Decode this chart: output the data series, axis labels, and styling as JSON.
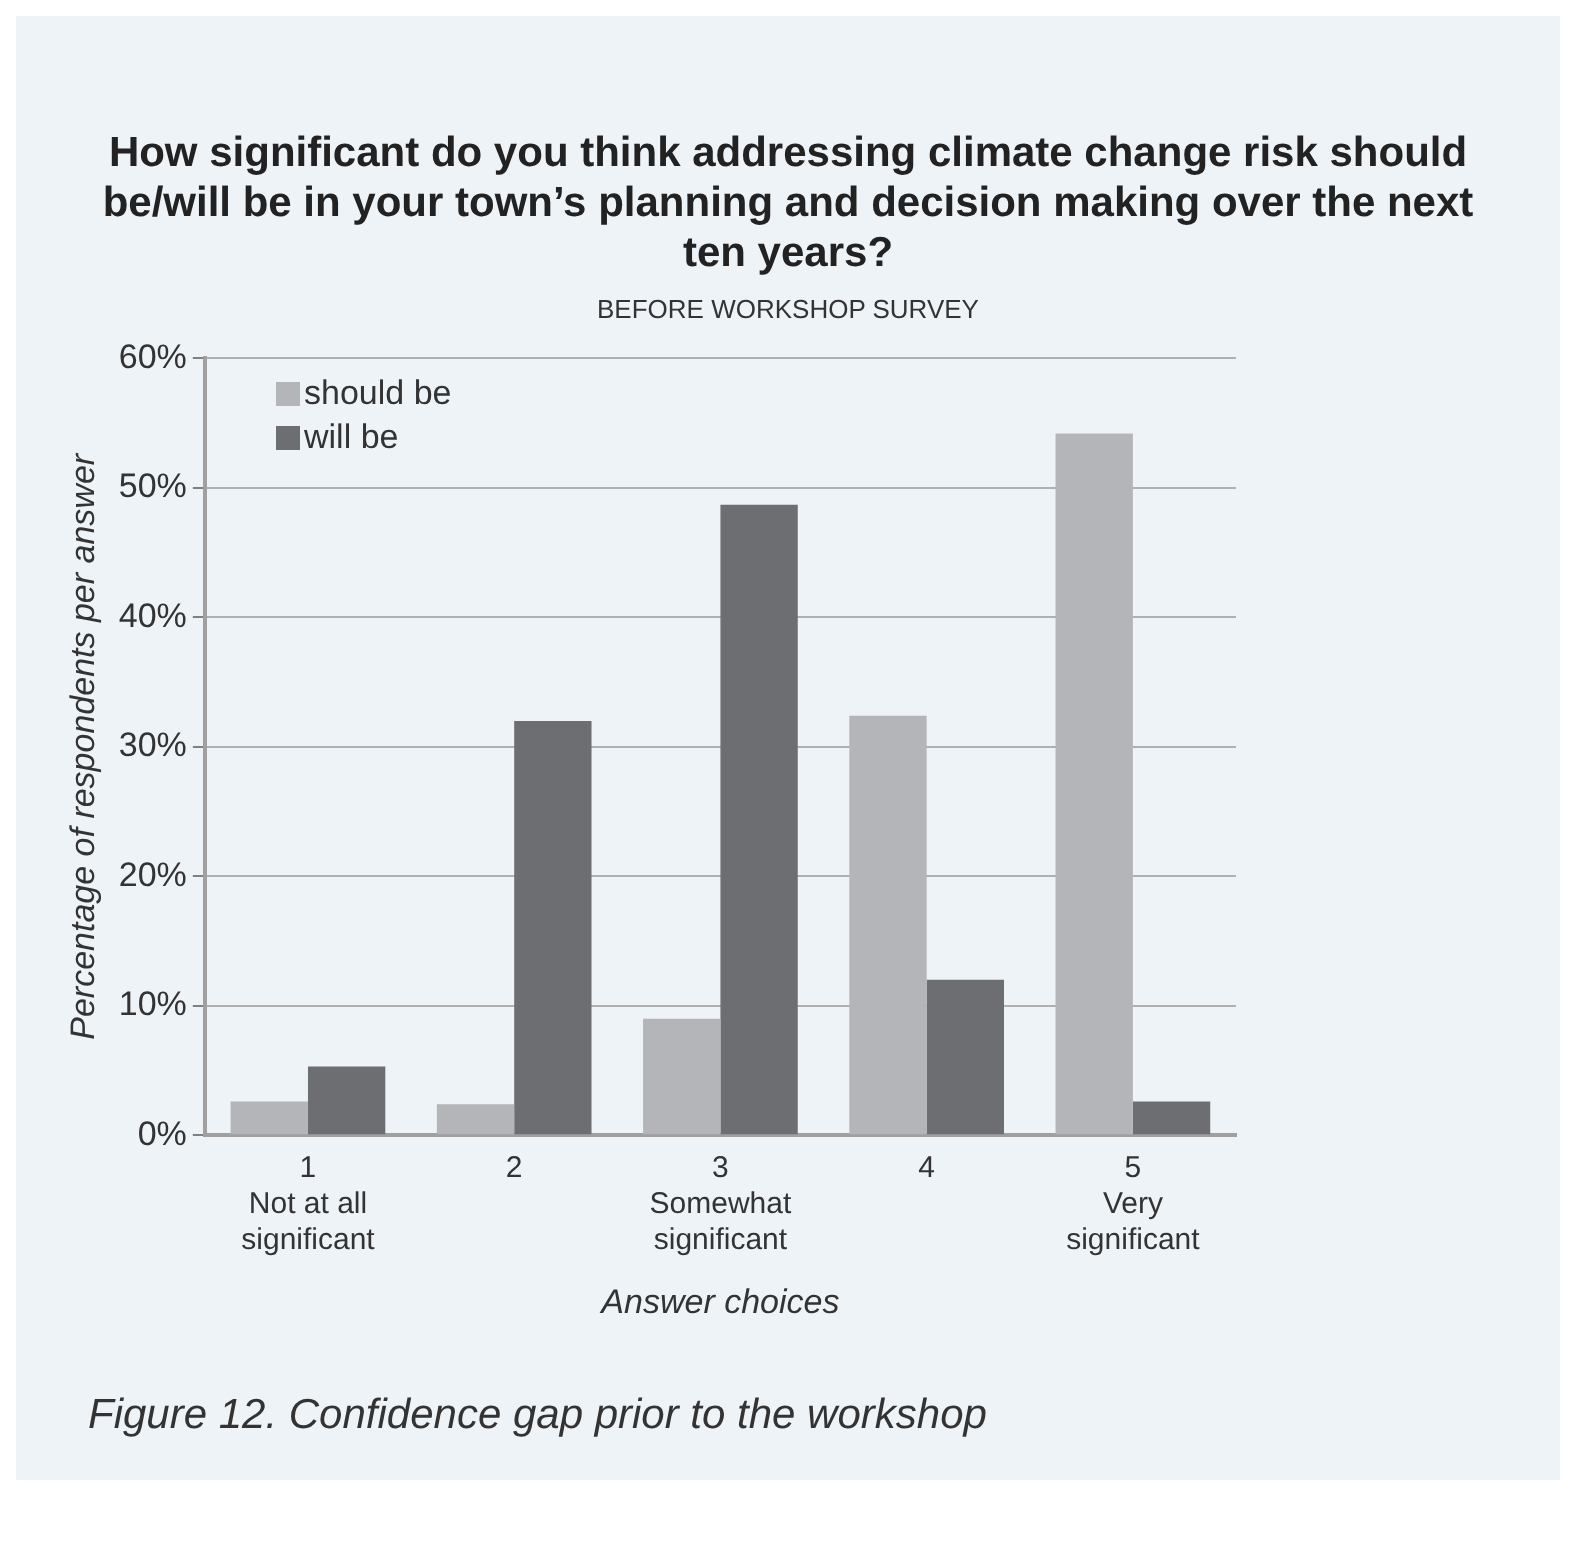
{
  "chart_data": {
    "type": "bar",
    "title": "How significant do you think addressing climate change risk should be/will be in your town’s planning and decision making over the next ten years?",
    "subtitle": "BEFORE WORKSHOP SURVEY",
    "xlabel": "Answer choices",
    "ylabel": "Percentage of respondents per answer",
    "categories": [
      "1\nNot at all\nsignificant",
      "2",
      "3\nSomewhat\nsignificant",
      "4",
      "5\nVery\nsignificant"
    ],
    "series": [
      {
        "name": "should be",
        "color": "#b4b5b8",
        "values": [
          2.6,
          2.4,
          9.0,
          32.4,
          54.2
        ]
      },
      {
        "name": "will be",
        "color": "#6d6e72",
        "values": [
          5.3,
          32.0,
          48.7,
          12.0,
          2.6
        ]
      }
    ],
    "ylim": [
      0,
      60
    ],
    "yticks": [
      {
        "value": 0,
        "label": "0%"
      },
      {
        "value": 10,
        "label": "10%"
      },
      {
        "value": 20,
        "label": "20%"
      },
      {
        "value": 30,
        "label": "30%"
      },
      {
        "value": 40,
        "label": "40%"
      },
      {
        "value": 50,
        "label": "50%"
      },
      {
        "value": 60,
        "label": "60%"
      }
    ],
    "grid": "y",
    "legend": "top left",
    "annotations": [
      "Figure 12. Confidence gap prior to the workshop"
    ]
  }
}
